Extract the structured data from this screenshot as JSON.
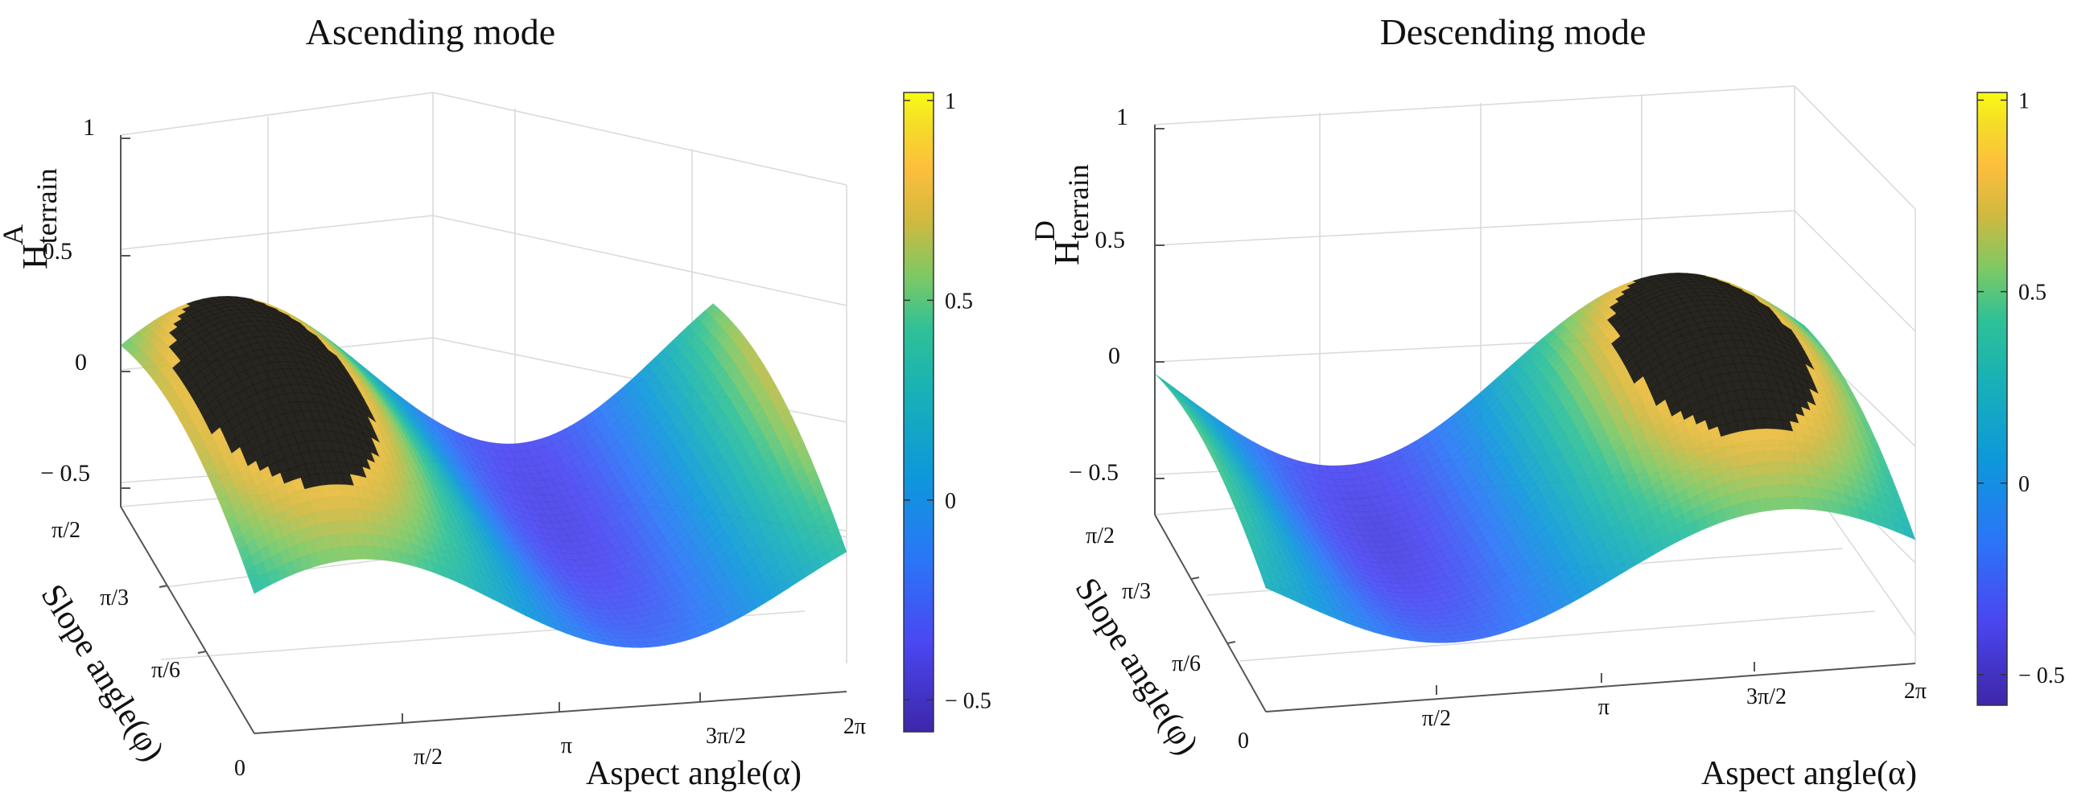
{
  "chart_data": [
    {
      "type": "surface",
      "title": "Ascending mode",
      "zlabel": {
        "main": "H",
        "sup": "A",
        "sub": "terrain"
      },
      "xlabel": "Aspect angle(α)",
      "ylabel": "Slope angle(φ)",
      "x_ticks": [
        "0",
        "π/2",
        "π",
        "3π/2",
        "2π"
      ],
      "y_ticks": [
        "π/6",
        "π/3",
        "π/2"
      ],
      "z_ticks": [
        "− 0.5",
        "0",
        "0.5",
        "1"
      ],
      "xlim": [
        0,
        6.2832
      ],
      "ylim": [
        0,
        1.5708
      ],
      "zlim": [
        -0.6,
        1
      ],
      "colorbar": {
        "ticks": [
          "− 0.5",
          "0",
          "0.5",
          "1"
        ],
        "tick_values": [
          -0.5,
          0,
          0.5,
          1
        ],
        "range": [
          -0.58,
          1.02
        ]
      },
      "surface_model": {
        "peak_aspect": 1.0472,
        "amplitude_scale": 1.0,
        "clip_value": 0.78,
        "clip_color": "#15120d"
      },
      "legend": "none",
      "grid": true
    },
    {
      "type": "surface",
      "title": "Descending mode",
      "zlabel": {
        "main": "H",
        "sup": "D",
        "sub": "terrain"
      },
      "xlabel": "Aspect angle(α)",
      "ylabel": "Slope angle(φ)",
      "x_ticks": [
        "0",
        "π/2",
        "π",
        "3π/2",
        "2π"
      ],
      "y_ticks": [
        "π/6",
        "π/3",
        "π/2"
      ],
      "z_ticks": [
        "− 0.5",
        "0",
        "0.5",
        "1"
      ],
      "xlim": [
        0,
        6.2832
      ],
      "ylim": [
        0,
        1.5708
      ],
      "zlim": [
        -0.6,
        1
      ],
      "colorbar": {
        "ticks": [
          "− 0.5",
          "0",
          "0.5",
          "1"
        ],
        "tick_values": [
          -0.5,
          0,
          0.5,
          1
        ],
        "range": [
          -0.58,
          1.02
        ]
      },
      "surface_model": {
        "peak_aspect": 4.9742,
        "amplitude_scale": 1.0,
        "clip_value": 0.78,
        "clip_color": "#15120d"
      },
      "legend": "none",
      "grid": true
    }
  ]
}
